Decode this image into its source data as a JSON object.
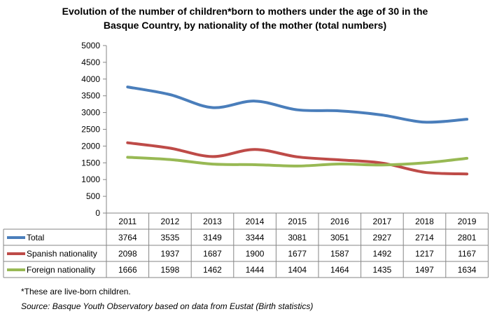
{
  "chart_data": {
    "type": "line",
    "title_line1": "Evolution of the number of children*born to mothers under the age of 30 in the",
    "title_line2": "Basque Country, by nationality of the mother (total numbers)",
    "categories": [
      "2011",
      "2012",
      "2013",
      "2014",
      "2015",
      "2016",
      "2017",
      "2018",
      "2019"
    ],
    "series": [
      {
        "name": "Total",
        "color": "#4a7ebb",
        "values": [
          3764,
          3535,
          3149,
          3344,
          3081,
          3051,
          2927,
          2714,
          2801
        ]
      },
      {
        "name": "Spanish nationality",
        "color": "#be4b48",
        "values": [
          2098,
          1937,
          1687,
          1900,
          1677,
          1587,
          1492,
          1217,
          1167
        ]
      },
      {
        "name": "Foreign nationality",
        "color": "#98b954",
        "values": [
          1666,
          1598,
          1462,
          1444,
          1404,
          1464,
          1435,
          1497,
          1634
        ]
      }
    ],
    "ylim": [
      0,
      5000
    ],
    "yticks": [
      "0",
      "500",
      "1000",
      "1500",
      "2000",
      "2500",
      "3000",
      "3500",
      "4000",
      "4500",
      "5000"
    ],
    "grid": false,
    "legend": "data table"
  },
  "notes": {
    "footnote": "*These are live-born children.",
    "source": "Source: Basque Youth Observatory based on data from Eustat (Birth statistics)"
  }
}
